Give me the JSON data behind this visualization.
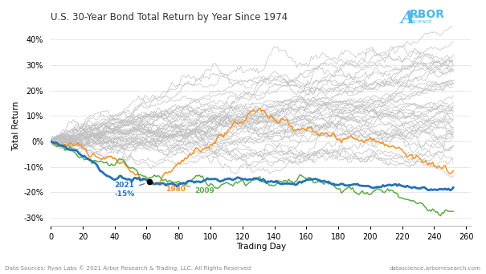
{
  "title": "U.S. 30-Year Bond Total Return by Year Since 1974",
  "xlabel": "Trading Day",
  "ylabel": "Total Return",
  "xlim": [
    0,
    263
  ],
  "ylim": [
    -0.33,
    0.45
  ],
  "yticks": [
    -0.3,
    -0.2,
    -0.1,
    0.0,
    0.1,
    0.2,
    0.3,
    0.4
  ],
  "xticks": [
    0,
    20,
    40,
    60,
    80,
    100,
    120,
    140,
    160,
    180,
    200,
    220,
    240,
    260
  ],
  "background_color": "#ffffff",
  "grid_color": "#e8e8e8",
  "gray_color": "#c0c0c0",
  "blue_color": "#2472b8",
  "orange_color": "#f5921e",
  "green_color": "#5aab47",
  "footer_left": "Data Sources: Ryan Labs © 2021 Arbor Research & Trading, LLC. All Rights Reserved",
  "footer_right": "datascience.arborresearch.com",
  "annotation_2021": "2021\n-15%",
  "annotation_1980": "1980",
  "annotation_2009": "2009",
  "num_days": 252,
  "conv_day": 62,
  "conv_val": -0.155
}
